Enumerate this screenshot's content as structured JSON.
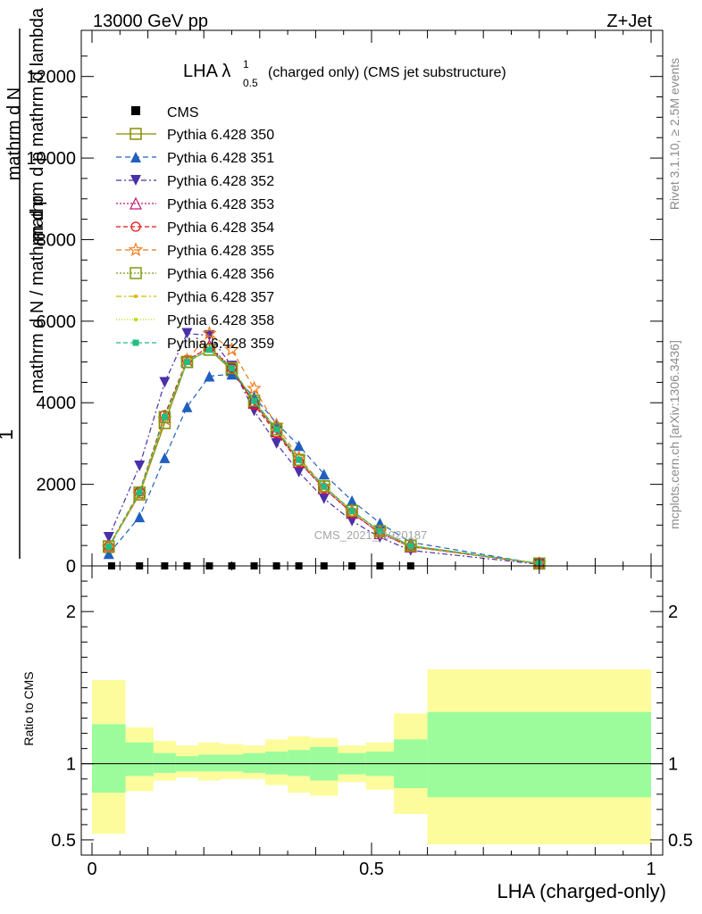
{
  "header": {
    "left": "13000 GeV pp",
    "right": "Z+Jet"
  },
  "side_labels": {
    "rivet": "Rivet 3.1.10, ≥ 2.5M events",
    "mcplots": "mcplots.cern.ch [arXiv:1306.3436]"
  },
  "chart_data": [
    {
      "type": "line",
      "panel": "main",
      "title_main": "LHA λ",
      "title_sup": "1",
      "title_sub": "0.5",
      "title_rest": "(charged only) (CMS jet substructure)",
      "ylabel_lines": [
        "mathrm d N / mathrm d p_T mathrm d lambda",
        "1",
        "mathrm d N / mathrm d p_T mathrm d lambda"
      ],
      "ylabel": {
        "one": "1",
        "num_top": "mathrm d",
        "num_N": "N",
        "num_line2": "mathrm d p",
        "num_T": "T",
        "num_line2b": "mathrm d lambda",
        "den": "mathrm d N / mathrm d p",
        "den_T": "T",
        "den_rest": "mathrm d p",
        "den_T2": "T",
        "den_rest2": "mathrm d lambda"
      },
      "watermark": "CMS_2021_I1920187",
      "ylim": [
        0,
        13000
      ],
      "yticks": [
        0,
        2000,
        4000,
        6000,
        8000,
        10000,
        12000
      ],
      "ytick_labels": [
        "0",
        "2000",
        "4000",
        "6000",
        "8000",
        "10000",
        "12000"
      ],
      "xlim": [
        -0.02,
        1.0
      ],
      "cms_x": [
        0.035,
        0.085,
        0.13,
        0.17,
        0.21,
        0.25,
        0.29,
        0.33,
        0.37,
        0.415,
        0.465,
        0.515,
        0.57
      ],
      "cms_y": [
        0,
        0,
        0,
        0,
        0,
        0,
        0,
        0,
        0,
        0,
        0,
        0,
        0
      ],
      "series": [
        {
          "name": "Pythia 6.428 350",
          "color": "#8b8b00",
          "dash": "",
          "marker": "square-open",
          "x": [
            0.03,
            0.085,
            0.13,
            0.17,
            0.21,
            0.25,
            0.29,
            0.33,
            0.37,
            0.415,
            0.465,
            0.515,
            0.57,
            0.8
          ],
          "y": [
            480,
            1750,
            3500,
            5000,
            5300,
            4800,
            4000,
            3300,
            2600,
            1950,
            1350,
            850,
            500,
            60
          ]
        },
        {
          "name": "Pythia 6.428 351",
          "color": "#1f5fbf",
          "dash": "6,4",
          "marker": "triangle-up",
          "x": [
            0.03,
            0.085,
            0.13,
            0.17,
            0.21,
            0.25,
            0.29,
            0.33,
            0.37,
            0.415,
            0.465,
            0.515,
            0.57,
            0.8
          ],
          "y": [
            300,
            1200,
            2650,
            3900,
            4650,
            4700,
            4150,
            3500,
            2950,
            2250,
            1600,
            1050,
            580,
            50
          ]
        },
        {
          "name": "Pythia 6.428 352",
          "color": "#4b2fa8",
          "dash": "6,3,2,3",
          "marker": "triangle-down",
          "x": [
            0.03,
            0.085,
            0.13,
            0.17,
            0.21,
            0.25,
            0.29,
            0.33,
            0.37,
            0.415,
            0.465,
            0.515,
            0.57,
            0.8
          ],
          "y": [
            700,
            2450,
            4500,
            5700,
            5650,
            4900,
            3800,
            3000,
            2300,
            1650,
            1100,
            700,
            380,
            40
          ]
        },
        {
          "name": "Pythia 6.428 353",
          "color": "#c2186b",
          "dash": "2,2",
          "marker": "triangle-open",
          "x": [
            0.03,
            0.085,
            0.13,
            0.17,
            0.21,
            0.25,
            0.29,
            0.33,
            0.37,
            0.415,
            0.465,
            0.515,
            0.57,
            0.8
          ],
          "y": [
            470,
            1800,
            3650,
            5000,
            5400,
            4850,
            4000,
            3300,
            2550,
            1900,
            1300,
            800,
            470,
            55
          ]
        },
        {
          "name": "Pythia 6.428 354",
          "color": "#e01414",
          "dash": "5,3",
          "marker": "circle-open",
          "x": [
            0.03,
            0.085,
            0.13,
            0.17,
            0.21,
            0.25,
            0.29,
            0.33,
            0.37,
            0.415,
            0.465,
            0.515,
            0.57,
            0.8
          ],
          "y": [
            480,
            1820,
            3700,
            5050,
            5350,
            4850,
            3950,
            3250,
            2550,
            1900,
            1300,
            800,
            470,
            55
          ]
        },
        {
          "name": "Pythia 6.428 355",
          "color": "#f07818",
          "dash": "6,4",
          "marker": "star-open",
          "x": [
            0.03,
            0.085,
            0.13,
            0.17,
            0.21,
            0.25,
            0.29,
            0.33,
            0.37,
            0.415,
            0.465,
            0.515,
            0.57,
            0.8
          ],
          "y": [
            450,
            1750,
            3600,
            5050,
            5700,
            5300,
            4350,
            3450,
            2650,
            1950,
            1350,
            850,
            480,
            55
          ]
        },
        {
          "name": "Pythia 6.428 356",
          "color": "#7a9a10",
          "dash": "2,2",
          "marker": "square-open",
          "x": [
            0.03,
            0.085,
            0.13,
            0.17,
            0.21,
            0.25,
            0.29,
            0.33,
            0.37,
            0.415,
            0.465,
            0.515,
            0.57,
            0.8
          ],
          "y": [
            470,
            1800,
            3650,
            5000,
            5300,
            4850,
            4050,
            3350,
            2600,
            1950,
            1350,
            850,
            490,
            60
          ]
        },
        {
          "name": "Pythia 6.428 357",
          "color": "#d4b800",
          "dash": "6,3,2,3",
          "marker": "dot-small",
          "x": [
            0.03,
            0.085,
            0.13,
            0.17,
            0.21,
            0.25,
            0.29,
            0.33,
            0.37,
            0.415,
            0.465,
            0.515,
            0.57,
            0.8
          ],
          "y": [
            470,
            1800,
            3650,
            5000,
            5300,
            4850,
            4050,
            3350,
            2600,
            1950,
            1350,
            850,
            490,
            60
          ]
        },
        {
          "name": "Pythia 6.428 358",
          "color": "#bcd800",
          "dash": "1,2",
          "marker": "dot-small",
          "x": [
            0.03,
            0.085,
            0.13,
            0.17,
            0.21,
            0.25,
            0.29,
            0.33,
            0.37,
            0.415,
            0.465,
            0.515,
            0.57,
            0.8
          ],
          "y": [
            470,
            1800,
            3650,
            5000,
            5300,
            4850,
            4050,
            3350,
            2600,
            1950,
            1350,
            850,
            490,
            60
          ]
        },
        {
          "name": "Pythia 6.428 359",
          "color": "#1fbf7f",
          "dash": "5,3",
          "marker": "square-filled",
          "x": [
            0.03,
            0.085,
            0.13,
            0.17,
            0.21,
            0.25,
            0.29,
            0.33,
            0.37,
            0.415,
            0.465,
            0.515,
            0.57,
            0.8
          ],
          "y": [
            470,
            1800,
            3650,
            5000,
            5300,
            4850,
            4050,
            3350,
            2600,
            1950,
            1350,
            850,
            490,
            60
          ]
        }
      ],
      "legend_data_label": "CMS"
    },
    {
      "type": "area",
      "panel": "ratio",
      "ylabel": "Ratio to CMS",
      "ylim": [
        0.4,
        2.3
      ],
      "yticks": [
        0.5,
        1,
        2
      ],
      "ytick_labels": [
        "0.5",
        "1",
        "2"
      ],
      "xlim": [
        -0.02,
        1.0
      ],
      "xticks": [
        0,
        0.5,
        1
      ],
      "xtick_labels": [
        "0",
        "0.5",
        "1"
      ],
      "xlabel": "LHA (charged-only)",
      "bins": [
        {
          "x0": 0.0,
          "x1": 0.06,
          "inner": [
            0.81,
            1.26
          ],
          "outer": [
            0.54,
            1.55
          ]
        },
        {
          "x0": 0.06,
          "x1": 0.11,
          "inner": [
            0.92,
            1.14
          ],
          "outer": [
            0.82,
            1.24
          ]
        },
        {
          "x0": 0.11,
          "x1": 0.15,
          "inner": [
            0.94,
            1.07
          ],
          "outer": [
            0.89,
            1.15
          ]
        },
        {
          "x0": 0.15,
          "x1": 0.19,
          "inner": [
            0.95,
            1.05
          ],
          "outer": [
            0.91,
            1.12
          ]
        },
        {
          "x0": 0.19,
          "x1": 0.23,
          "inner": [
            0.95,
            1.06
          ],
          "outer": [
            0.89,
            1.14
          ]
        },
        {
          "x0": 0.23,
          "x1": 0.27,
          "inner": [
            0.95,
            1.06
          ],
          "outer": [
            0.9,
            1.13
          ]
        },
        {
          "x0": 0.27,
          "x1": 0.31,
          "inner": [
            0.94,
            1.07
          ],
          "outer": [
            0.9,
            1.12
          ]
        },
        {
          "x0": 0.31,
          "x1": 0.35,
          "inner": [
            0.93,
            1.08
          ],
          "outer": [
            0.86,
            1.16
          ]
        },
        {
          "x0": 0.35,
          "x1": 0.39,
          "inner": [
            0.92,
            1.09
          ],
          "outer": [
            0.81,
            1.18
          ]
        },
        {
          "x0": 0.39,
          "x1": 0.44,
          "inner": [
            0.89,
            1.11
          ],
          "outer": [
            0.79,
            1.17
          ]
        },
        {
          "x0": 0.44,
          "x1": 0.49,
          "inner": [
            0.93,
            1.07
          ],
          "outer": [
            0.88,
            1.12
          ]
        },
        {
          "x0": 0.49,
          "x1": 0.54,
          "inner": [
            0.92,
            1.08
          ],
          "outer": [
            0.83,
            1.14
          ]
        },
        {
          "x0": 0.54,
          "x1": 0.6,
          "inner": [
            0.84,
            1.16
          ],
          "outer": [
            0.67,
            1.33
          ]
        },
        {
          "x0": 0.6,
          "x1": 1.0,
          "inner": [
            0.78,
            1.34
          ],
          "outer": [
            0.47,
            1.62
          ]
        }
      ],
      "inner_color": "#9cfc9c",
      "outer_color": "#fcfc9c"
    }
  ]
}
